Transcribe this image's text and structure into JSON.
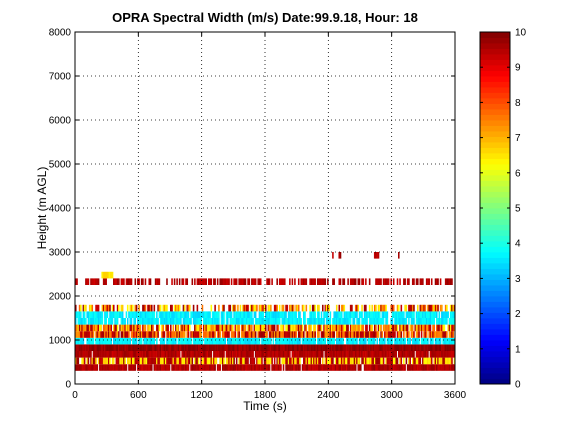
{
  "chart_data": {
    "type": "heatmap",
    "title": "OPRA Spectral Width (m/s)  Date:99.9.18, Hour: 18",
    "xlabel": "Time (s)",
    "ylabel": "Height (m AGL)",
    "xlim": [
      0,
      3600
    ],
    "ylim": [
      0,
      8000
    ],
    "xticks": [
      0,
      600,
      1200,
      1800,
      2400,
      3000,
      3600
    ],
    "yticks": [
      0,
      1000,
      2000,
      3000,
      4000,
      5000,
      6000,
      7000,
      8000
    ],
    "grid": true,
    "colorbar": {
      "label_range": [
        0,
        10
      ],
      "ticks": [
        0,
        1,
        2,
        3,
        4,
        5,
        6,
        7,
        8,
        9,
        10
      ],
      "colormap": "jet"
    },
    "bands": [
      {
        "y0": 300,
        "y1": 450,
        "value": 9.5,
        "start": 0,
        "end": 3600,
        "coverage": 0.95
      },
      {
        "y0": 450,
        "y1": 600,
        "value": 7.0,
        "start": 0,
        "end": 3600,
        "coverage": 0.9,
        "mix": [
          9.5,
          6.5
        ]
      },
      {
        "y0": 600,
        "y1": 750,
        "value": 9.5,
        "start": 0,
        "end": 3600,
        "coverage": 0.95
      },
      {
        "y0": 750,
        "y1": 900,
        "value": 9.8,
        "start": 0,
        "end": 3600,
        "coverage": 1.0
      },
      {
        "y0": 900,
        "y1": 1050,
        "value": 3.6,
        "start": 0,
        "end": 3600,
        "coverage": 0.9
      },
      {
        "y0": 1050,
        "y1": 1200,
        "value": 9.2,
        "start": 0,
        "end": 3600,
        "coverage": 0.9,
        "mix": [
          9.5,
          7.5
        ]
      },
      {
        "y0": 1200,
        "y1": 1350,
        "value": 6.8,
        "start": 0,
        "end": 3600,
        "coverage": 0.85,
        "mix": [
          9.5,
          6.5,
          7.5
        ]
      },
      {
        "y0": 1350,
        "y1": 1500,
        "value": 3.6,
        "start": 0,
        "end": 3600,
        "coverage": 0.9
      },
      {
        "y0": 1500,
        "y1": 1650,
        "value": 3.6,
        "start": 0,
        "end": 3600,
        "coverage": 0.85
      },
      {
        "y0": 1650,
        "y1": 1800,
        "value": 8.0,
        "start": 0,
        "end": 3600,
        "coverage": 0.6,
        "mix": [
          9.5,
          7.5,
          6.5
        ]
      },
      {
        "y0": 2250,
        "y1": 2400,
        "value": 9.5,
        "start": 0,
        "end": 3600,
        "coverage": 0.6
      },
      {
        "y0": 2400,
        "y1": 2550,
        "value": 6.5,
        "start": 250,
        "end": 360,
        "coverage": 1.0
      },
      {
        "y0": 2850,
        "y1": 3000,
        "value": 9.5,
        "start": 2400,
        "end": 3100,
        "coverage": 0.12
      }
    ]
  }
}
